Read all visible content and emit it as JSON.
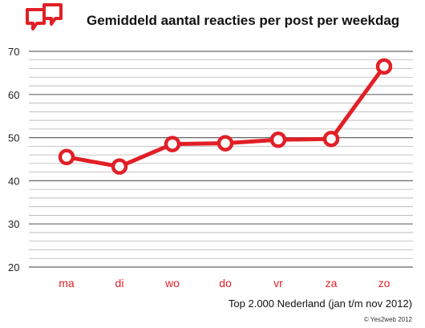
{
  "chart_data": {
    "type": "line",
    "title": "Gemiddeld aantal reacties per post per weekdag",
    "categories": [
      "ma",
      "di",
      "wo",
      "do",
      "vr",
      "za",
      "zo"
    ],
    "series": [
      {
        "values": [
          45.5,
          43.3,
          48.5,
          48.7,
          49.5,
          49.7,
          66.5
        ]
      }
    ],
    "ylim": [
      20,
      70
    ],
    "y_ticks": [
      "20",
      "30",
      "40",
      "50",
      "60",
      "70"
    ],
    "grid": true,
    "xlabel": "",
    "ylabel": "",
    "note": "Top 2.000 Nederland (jan t/m nov 2012)",
    "credit": "© Yes2web 2012"
  },
  "colors": {
    "accent": "#e21f26",
    "grid": "#b3b3b3",
    "axis": "#666666",
    "text": "#111111"
  },
  "logo_icon": "speech-bubbles-icon"
}
